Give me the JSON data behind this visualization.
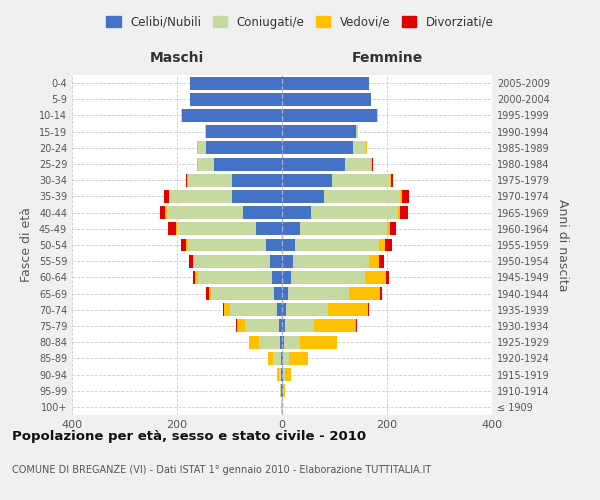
{
  "age_groups": [
    "100+",
    "95-99",
    "90-94",
    "85-89",
    "80-84",
    "75-79",
    "70-74",
    "65-69",
    "60-64",
    "55-59",
    "50-54",
    "45-49",
    "40-44",
    "35-39",
    "30-34",
    "25-29",
    "20-24",
    "15-19",
    "10-14",
    "5-9",
    "0-4"
  ],
  "birth_years": [
    "≤ 1909",
    "1910-1914",
    "1915-1919",
    "1920-1924",
    "1925-1929",
    "1930-1934",
    "1935-1939",
    "1940-1944",
    "1945-1949",
    "1950-1954",
    "1955-1959",
    "1960-1964",
    "1965-1969",
    "1970-1974",
    "1975-1979",
    "1980-1984",
    "1985-1989",
    "1990-1994",
    "1995-1999",
    "2000-2004",
    "2005-2009"
  ],
  "maschi": {
    "celibi": [
      0,
      1,
      1,
      2,
      4,
      5,
      10,
      15,
      20,
      22,
      30,
      50,
      75,
      95,
      95,
      130,
      145,
      145,
      190,
      175,
      175
    ],
    "coniugati": [
      1,
      2,
      5,
      15,
      40,
      65,
      90,
      120,
      140,
      145,
      150,
      150,
      145,
      120,
      85,
      30,
      15,
      2,
      2,
      0,
      0
    ],
    "vedovi": [
      0,
      1,
      4,
      10,
      18,
      15,
      10,
      5,
      5,
      2,
      2,
      2,
      2,
      1,
      1,
      1,
      1,
      0,
      0,
      0,
      0
    ],
    "divorziati": [
      0,
      0,
      0,
      0,
      1,
      2,
      3,
      5,
      5,
      8,
      10,
      15,
      10,
      8,
      2,
      1,
      1,
      0,
      0,
      0,
      0
    ]
  },
  "femmine": {
    "nubili": [
      0,
      1,
      1,
      2,
      4,
      5,
      8,
      12,
      18,
      20,
      25,
      35,
      55,
      80,
      95,
      120,
      135,
      140,
      180,
      170,
      165
    ],
    "coniugate": [
      1,
      2,
      5,
      12,
      30,
      55,
      80,
      115,
      140,
      145,
      160,
      165,
      165,
      145,
      110,
      50,
      25,
      5,
      2,
      0,
      0
    ],
    "vedove": [
      0,
      2,
      12,
      35,
      70,
      80,
      75,
      60,
      40,
      20,
      12,
      5,
      5,
      4,
      2,
      2,
      1,
      0,
      0,
      0,
      0
    ],
    "divorziate": [
      0,
      0,
      0,
      0,
      1,
      2,
      3,
      4,
      6,
      10,
      12,
      12,
      15,
      12,
      5,
      2,
      1,
      0,
      0,
      0,
      0
    ]
  },
  "colors": {
    "celibi_nubili": "#4472c4",
    "coniugati_e": "#c5d9a0",
    "vedovi_e": "#ffc000",
    "divorziati_e": "#e00000"
  },
  "xlim": 400,
  "title": "Popolazione per età, sesso e stato civile - 2010",
  "subtitle": "COMUNE DI BREGANZE (VI) - Dati ISTAT 1° gennaio 2010 - Elaborazione TUTTITALIA.IT",
  "ylabel_left": "Fasce di età",
  "ylabel_right": "Anni di nascita",
  "xlabel_left": "Maschi",
  "xlabel_right": "Femmine",
  "bg_color": "#f0f0f0",
  "plot_bg": "#ffffff"
}
